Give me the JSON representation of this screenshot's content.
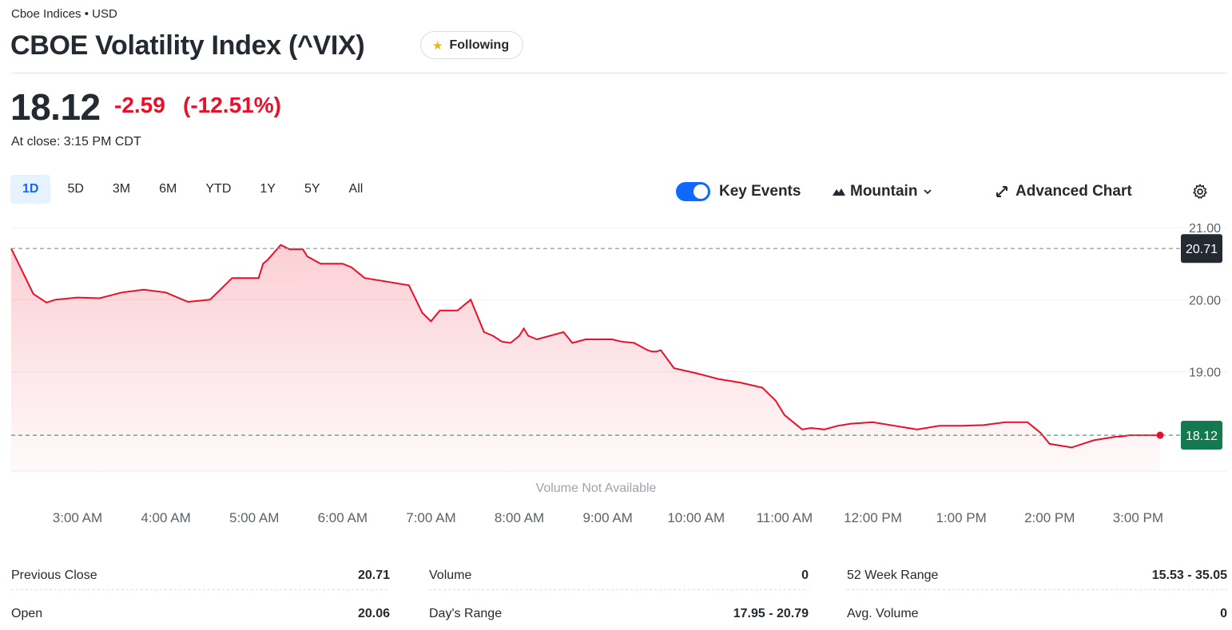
{
  "header": {
    "exchange": "Cboe Indices • USD",
    "title": "CBOE Volatility Index (^VIX)",
    "follow_label": "Following"
  },
  "quote": {
    "price": "18.12",
    "change": "-2.59",
    "change_pct": "(-12.51%)",
    "close_time": "At close: 3:15 PM CDT"
  },
  "ranges": [
    "1D",
    "5D",
    "3M",
    "6M",
    "YTD",
    "1Y",
    "5Y",
    "All"
  ],
  "active_range": "1D",
  "toolbar": {
    "key_events_label": "Key Events",
    "key_events_on": true,
    "chart_type_label": "Mountain",
    "advanced_label": "Advanced Chart"
  },
  "colors": {
    "line": "#eb0f29",
    "accent": "#0f69ff",
    "prev_close_badge": "#232a31",
    "last_badge": "#137a4f"
  },
  "chart_data": {
    "type": "area",
    "xlabel": "",
    "ylabel": "",
    "ylim": [
      17.6,
      21.1
    ],
    "yticks": [
      "21.00",
      "20.00",
      "19.00"
    ],
    "xticks": [
      "3:00 AM",
      "4:00 AM",
      "5:00 AM",
      "6:00 AM",
      "7:00 AM",
      "8:00 AM",
      "9:00 AM",
      "10:00 AM",
      "11:00 AM",
      "12:00 PM",
      "1:00 PM",
      "2:00 PM",
      "3:00 PM"
    ],
    "x_range_hours": [
      2.25,
      15.25
    ],
    "previous_close": 20.71,
    "previous_close_label": "20.71",
    "last": 18.12,
    "last_label": "18.12",
    "volume_note": "Volume Not Available",
    "series": [
      {
        "x": [
          2.25,
          2.5,
          2.6,
          2.65,
          2.75,
          3.0,
          3.25,
          3.5,
          3.75,
          4.0,
          4.25,
          4.5,
          4.75,
          5.0,
          5.05,
          5.1,
          5.15,
          5.3,
          5.4,
          5.5,
          5.55,
          5.6,
          5.75,
          5.9,
          6.0,
          6.1,
          6.25,
          6.5,
          6.75,
          6.9,
          7.0,
          7.1,
          7.3,
          7.45,
          7.5,
          7.55,
          7.6,
          7.7,
          7.8,
          7.9,
          8.0,
          8.05,
          8.1,
          8.2,
          8.5,
          8.6,
          8.75,
          8.9,
          9.0,
          9.05,
          9.15,
          9.3,
          9.45,
          9.5,
          9.55,
          9.6,
          9.75,
          10.0,
          10.25,
          10.5,
          10.75,
          10.9,
          11.0,
          11.2,
          11.3,
          11.45,
          11.6,
          11.75,
          12.0,
          12.25,
          12.5,
          12.75,
          12.9,
          13.0,
          13.25,
          13.5,
          13.75,
          13.9,
          14.0,
          14.25,
          14.5,
          14.75,
          14.8,
          14.9,
          14.95,
          15.0,
          15.1,
          15.15,
          15.25
        ],
        "y": [
          20.71,
          20.08,
          20.0,
          19.96,
          20.0,
          20.03,
          20.02,
          20.1,
          20.14,
          20.1,
          19.97,
          20.0,
          20.3,
          20.3,
          20.3,
          20.5,
          20.55,
          20.76,
          20.7,
          20.7,
          20.7,
          20.6,
          20.5,
          20.5,
          20.5,
          20.45,
          20.3,
          20.25,
          20.2,
          19.82,
          19.7,
          19.85,
          19.85,
          20.0,
          19.85,
          19.7,
          19.55,
          19.5,
          19.42,
          19.4,
          19.5,
          19.6,
          19.5,
          19.45,
          19.55,
          19.4,
          19.45,
          19.45,
          19.45,
          19.45,
          19.42,
          19.4,
          19.3,
          19.28,
          19.28,
          19.3,
          19.05,
          18.98,
          18.9,
          18.85,
          18.78,
          18.6,
          18.4,
          18.2,
          18.22,
          18.2,
          18.25,
          18.28,
          18.3,
          18.25,
          18.2,
          18.25,
          18.25,
          18.25,
          18.26,
          18.3,
          18.3,
          18.15,
          18.0,
          17.95,
          18.05,
          18.1,
          18.1,
          18.12,
          18.12,
          18.12,
          18.12,
          18.12,
          18.12
        ]
      }
    ]
  },
  "stats": [
    {
      "label": "Previous Close",
      "value": "20.71"
    },
    {
      "label": "Volume",
      "value": "0"
    },
    {
      "label": "52 Week Range",
      "value": "15.53 - 35.05"
    },
    {
      "label": "Open",
      "value": "20.06"
    },
    {
      "label": "Day's Range",
      "value": "17.95 - 20.79"
    },
    {
      "label": "Avg. Volume",
      "value": "0"
    }
  ]
}
